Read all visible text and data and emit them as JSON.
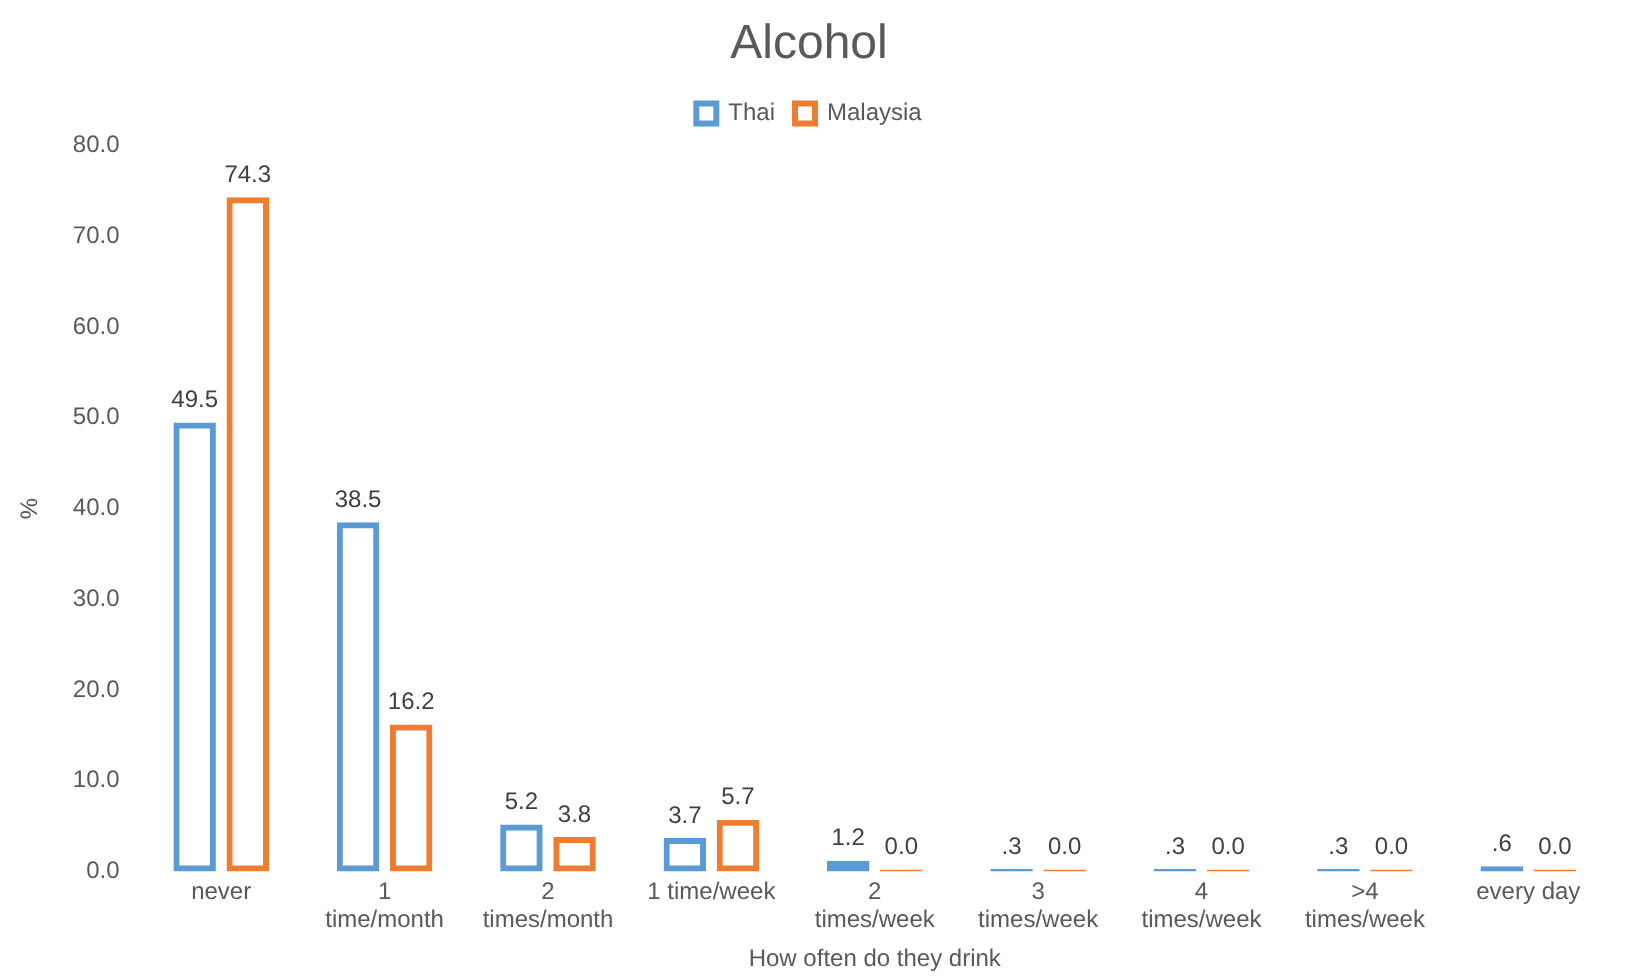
{
  "chart_data": {
    "type": "bar",
    "title": "Alcohol",
    "xlabel": "How often do they drink",
    "ylabel": "%",
    "categories": [
      "never",
      "1\ntime/month",
      "2\ntimes/month",
      "1 time/week",
      "2\ntimes/week",
      "3\ntimes/week",
      "4\ntimes/week",
      ">4\ntimes/week",
      "every day"
    ],
    "series": [
      {
        "name": "Thai",
        "color": "#5b9bd5",
        "values": [
          49.5,
          38.5,
          5.2,
          3.7,
          1.2,
          0.3,
          0.3,
          0.3,
          0.6
        ],
        "value_labels": [
          "49.5",
          "38.5",
          "5.2",
          "3.7",
          "1.2",
          ".3",
          ".3",
          ".3",
          ".6"
        ]
      },
      {
        "name": "Malaysia",
        "color": "#ed7d31",
        "values": [
          74.3,
          16.2,
          3.8,
          5.7,
          0.0,
          0.0,
          0.0,
          0.0,
          0.0
        ],
        "value_labels": [
          "74.3",
          "16.2",
          "3.8",
          "5.7",
          "0.0",
          "0.0",
          "0.0",
          "0.0",
          "0.0"
        ]
      }
    ],
    "ylim": [
      0,
      80
    ],
    "yticks": [
      {
        "value": 0,
        "label": "0.0"
      },
      {
        "value": 10,
        "label": "10.0"
      },
      {
        "value": 20,
        "label": "20.0"
      },
      {
        "value": 30,
        "label": "30.0"
      },
      {
        "value": 40,
        "label": "40.0"
      },
      {
        "value": 50,
        "label": "50.0"
      },
      {
        "value": 60,
        "label": "60.0"
      },
      {
        "value": 70,
        "label": "70.0"
      },
      {
        "value": 80,
        "label": "80.0"
      }
    ],
    "grid": false,
    "legend": "top"
  }
}
